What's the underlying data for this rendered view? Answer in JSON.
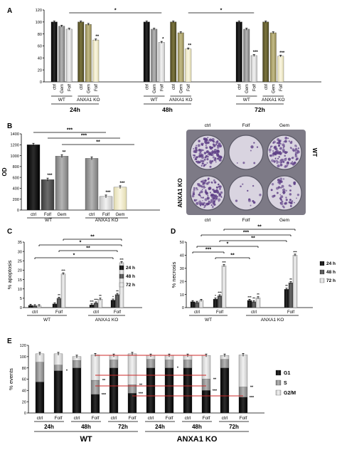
{
  "colors": {
    "black": "#0d0d0d",
    "dark_gray": "#4a4a4a",
    "mid_gray": "#8c8c8c",
    "light_gray": "#cfcfcf",
    "olive_dark": "#5f5a26",
    "olive_mid": "#a39a62",
    "cream": "#efe9c6",
    "red": "#cc2a2a",
    "pink": "#e56a8a",
    "plate_bg": "#7d7a86",
    "well_bg": "#d9d4e0",
    "well_purple": "#5e3f86"
  },
  "chart_data": [
    {
      "panel": "A",
      "type": "bar",
      "ylim": [
        0,
        120
      ],
      "yticks": [
        "0",
        "20",
        "40",
        "60",
        "80",
        "100",
        "120"
      ],
      "groups": [
        {
          "time": "24h",
          "wt_label": "WT",
          "ko_label": "ANXA1 KO",
          "categories": [
            "ctrl",
            "Gem",
            "Folf",
            "ctrl",
            "Gem",
            "Folf"
          ],
          "values": [
            100,
            93,
            88,
            100,
            96,
            70
          ],
          "sig": [
            "",
            "",
            "",
            "",
            "",
            "**"
          ]
        },
        {
          "time": "48h",
          "wt_label": "WT",
          "ko_label": "ANXA1 KO",
          "categories": [
            "ctrl",
            "Gem",
            "Folf",
            "ctrl",
            "Gem",
            "Folf"
          ],
          "values": [
            100,
            88,
            66,
            100,
            82,
            55
          ],
          "sig": [
            "",
            "",
            "*",
            "",
            "",
            "**"
          ]
        },
        {
          "time": "72h",
          "wt_label": "WT",
          "ko_label": "ANXA1 KO",
          "categories": [
            "ctrl",
            "Gem",
            "Folf",
            "ctrl",
            "Gem",
            "Folf"
          ],
          "values": [
            100,
            88,
            44,
            100,
            82,
            43
          ],
          "sig": [
            "",
            "",
            "***",
            "",
            "",
            "***"
          ]
        }
      ],
      "brackets": [
        "*",
        "*"
      ]
    },
    {
      "panel": "B",
      "type": "bar",
      "ylabel": "OD",
      "ylim": [
        0,
        1400
      ],
      "yticks": [
        "0",
        "200",
        "400",
        "600",
        "800",
        "1000",
        "1200",
        "1400"
      ],
      "categories": [
        "ctrl",
        "Folf",
        "Gem",
        "ctrl",
        "Folf",
        "Gem"
      ],
      "values": [
        1200,
        560,
        990,
        950,
        250,
        420
      ],
      "sig": [
        "",
        "***",
        "**",
        "",
        "***",
        "***"
      ],
      "group_labels": [
        "WT",
        "ANXA1 KO"
      ],
      "brackets": [
        "***",
        "***",
        "**"
      ]
    },
    {
      "panel": "C",
      "type": "bar",
      "ylabel": "% apoptosis",
      "ylim": [
        0,
        35
      ],
      "yticks": [
        "0",
        "5",
        "10",
        "15",
        "20",
        "25",
        "30",
        "35"
      ],
      "legend": [
        "24 h",
        "48 h",
        "72 h"
      ],
      "categories": [
        "ctrl",
        "Folf",
        "ctrl",
        "Folf"
      ],
      "group_labels": [
        "WT",
        "ANXA1 KO"
      ],
      "series": [
        {
          "name": "24 h",
          "values": [
            1.2,
            2.0,
            1.5,
            4.0
          ]
        },
        {
          "name": "48 h",
          "values": [
            1.0,
            5.0,
            2.5,
            7.0
          ]
        },
        {
          "name": "72 h",
          "values": [
            1.0,
            18.0,
            4.5,
            24.0
          ]
        }
      ],
      "sig": [
        [
          "",
          "",
          ""
        ],
        [
          "",
          "**",
          "***"
        ],
        [
          "***",
          "***",
          "**"
        ],
        [
          "*",
          "**",
          "***"
        ]
      ],
      "brackets": [
        "**",
        "*",
        "**",
        "*"
      ]
    },
    {
      "panel": "D",
      "type": "bar",
      "ylabel": "% necrosis",
      "ylim": [
        0,
        50
      ],
      "yticks": [
        "0",
        "10",
        "20",
        "30",
        "40",
        "50"
      ],
      "legend": [
        "24 h",
        "48 h",
        "72 h"
      ],
      "categories": [
        "ctrl",
        "Folf",
        "ctrl",
        "Folf"
      ],
      "group_labels": [
        "WT",
        "ANXA1 KO"
      ],
      "series": [
        {
          "name": "24 h",
          "values": [
            4.5,
            6.5,
            5.5,
            14.0
          ]
        },
        {
          "name": "48 h",
          "values": [
            4.0,
            9.0,
            4.5,
            19.0
          ]
        },
        {
          "name": "72 h",
          "values": [
            5.5,
            32.0,
            7.5,
            40.0
          ]
        }
      ],
      "sig": [
        [
          "",
          "",
          ""
        ],
        [
          "*",
          "***",
          "***"
        ],
        [
          "***",
          "**",
          "**"
        ],
        [
          "**",
          "**",
          "***"
        ]
      ],
      "brackets": [
        "**",
        "***",
        "**",
        "*",
        "***",
        "**"
      ]
    },
    {
      "panel": "E",
      "type": "bar",
      "stacked": true,
      "ylabel": "% events",
      "ylim": [
        0,
        120
      ],
      "yticks": [
        "0",
        "20",
        "40",
        "60",
        "80",
        "100",
        "120"
      ],
      "legend": [
        "G1",
        "S",
        "G2/M"
      ],
      "categories": [
        "ctrl",
        "Folf",
        "ctrl",
        "Folf",
        "ctrl",
        "Folf",
        "ctrl",
        "Folf",
        "ctrl",
        "Folf",
        "ctrl",
        "Folf"
      ],
      "time_labels": [
        "24h",
        "48h",
        "72h",
        "24h",
        "48h",
        "72h"
      ],
      "group_labels": [
        "WT",
        "ANXA1 KO"
      ],
      "series": [
        {
          "name": "G1",
          "values": [
            55,
            75,
            80,
            33,
            80,
            35,
            80,
            80,
            80,
            40,
            80,
            28
          ]
        },
        {
          "name": "S",
          "values": [
            35,
            10,
            13,
            25,
            14,
            15,
            15,
            14,
            14,
            20,
            15,
            18
          ]
        },
        {
          "name": "G2/M",
          "values": [
            15,
            20,
            7,
            45,
            8,
            55,
            7,
            8,
            8,
            42,
            7,
            57
          ]
        }
      ],
      "sig": [
        "",
        "*",
        "",
        "***",
        "",
        "***",
        "",
        "*",
        "",
        "***",
        "",
        "***"
      ],
      "sig_mid": [
        "",
        "",
        "",
        "**",
        "",
        "**",
        "",
        "",
        "",
        "**",
        "",
        "**"
      ]
    }
  ],
  "plate": {
    "top_labels": [
      "ctrl",
      "Folf",
      "Gem"
    ],
    "bottom_labels": [
      "ctrl",
      "Folf",
      "Gem"
    ],
    "row_labels": [
      "WT",
      "ANXA1 KO"
    ]
  },
  "panel_letters": [
    "A",
    "B",
    "C",
    "D",
    "E"
  ]
}
